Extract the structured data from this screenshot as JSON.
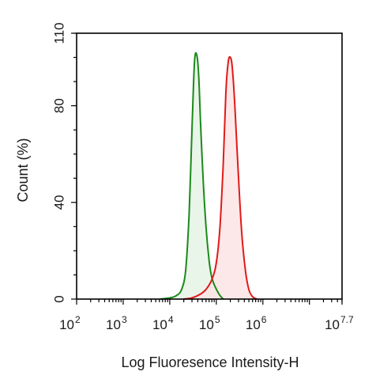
{
  "chart_data": {
    "type": "area",
    "title": "",
    "xlabel": "Log Fluoresence Intensity-H",
    "ylabel": "Count  (%)",
    "x_scale": "log",
    "xlim": [
      100,
      50118723
    ],
    "ylim": [
      0,
      110
    ],
    "grid": false,
    "legend": "none",
    "x_ticks": [
      {
        "base": "10",
        "exp": "2",
        "value": 100
      },
      {
        "base": "10",
        "exp": "3",
        "value": 1000
      },
      {
        "base": "10",
        "exp": "4",
        "value": 10000
      },
      {
        "base": "10",
        "exp": "5",
        "value": 100000
      },
      {
        "base": "10",
        "exp": "6",
        "value": 1000000
      },
      {
        "base": "10",
        "exp": "7.7",
        "value": 50118723
      }
    ],
    "y_ticks": [
      {
        "label": "0",
        "value": 0
      },
      {
        "label": "40",
        "value": 40
      },
      {
        "label": "80",
        "value": 80
      },
      {
        "label": "110",
        "value": 110
      }
    ],
    "series": [
      {
        "color": "#1a8a1a",
        "fill": "#e6f3e6",
        "x": [
          6300,
          10000,
          14000,
          18000,
          22000,
          26000,
          30000,
          34000,
          38000,
          42000,
          46000,
          52000,
          60000,
          70000,
          80000,
          95000,
          115000,
          140000
        ],
        "y": [
          0,
          0.5,
          1.5,
          4,
          12,
          35,
          70,
          98,
          101,
          92,
          72,
          50,
          30,
          16,
          9,
          5,
          2,
          0
        ]
      },
      {
        "color": "#e01a1a",
        "fill": "#fbe4e4",
        "x": [
          20000,
          30000,
          45000,
          60000,
          80000,
          100000,
          120000,
          140000,
          160000,
          180000,
          200000,
          220000,
          250000,
          300000,
          350000,
          420000,
          500000,
          600000,
          750000
        ],
        "y": [
          0,
          0.5,
          2,
          4,
          8,
          15,
          30,
          55,
          85,
          98,
          100,
          96,
          80,
          50,
          28,
          12,
          4,
          1,
          0
        ]
      }
    ]
  }
}
